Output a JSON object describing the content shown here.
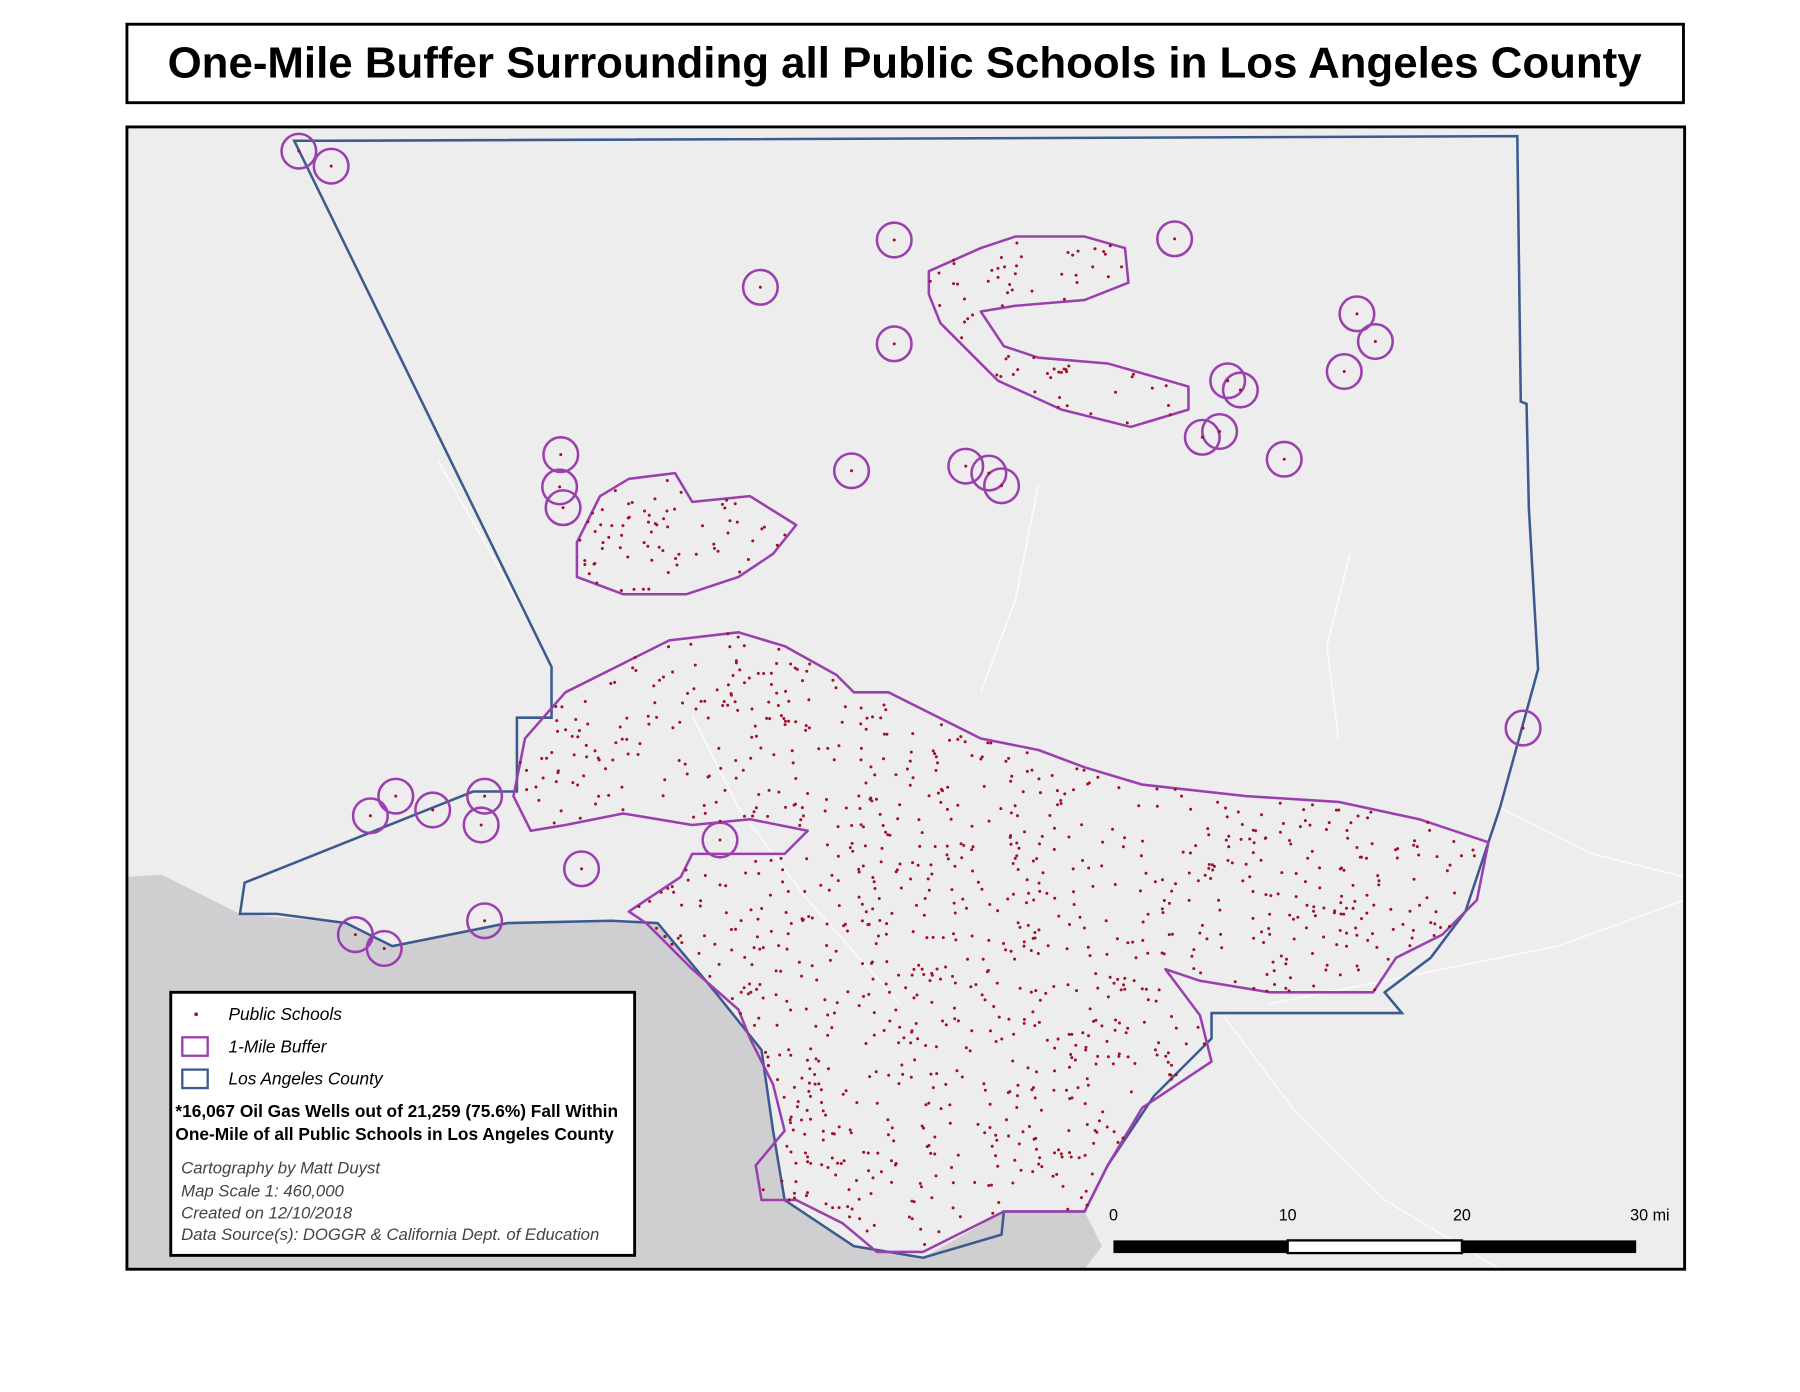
{
  "title": "One-Mile Buffer Surrounding all Public Schools in Los Angeles County",
  "legend": {
    "items": [
      "Public Schools",
      "1-Mile Buffer",
      "Los Angeles County"
    ]
  },
  "note": [
    "*16,067 Oil Gas Wells out of 21,259 (75.6%) Fall Within",
    "One-Mile of all Public Schools in Los Angeles County"
  ],
  "credits": [
    "Cartography by Matt Duyst",
    "Map Scale 1: 460,000",
    "Created on 12/10/2018",
    "Data Source(s): DOGGR & California Dept. of Education"
  ],
  "scale_bar": {
    "labels": [
      "0",
      "10",
      "20",
      "30 mi"
    ]
  }
}
